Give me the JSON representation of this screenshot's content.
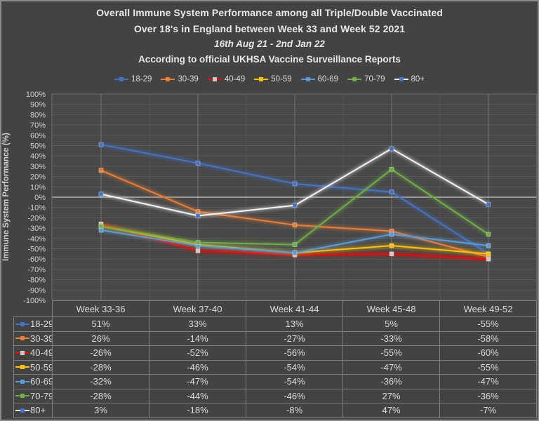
{
  "window": {
    "background": "#434343",
    "border_color": "#8c8c8c"
  },
  "title": {
    "line1": "Overall Immune System Performance among all Triple/Double Vaccinated",
    "line2": "Over 18's in England between Week 33 and Week 52 2021",
    "line3": "16th Aug 21 - 2nd Jan 22",
    "line4": "According to official UKHSA Vaccine Surveillance Reports"
  },
  "chart_data": {
    "type": "line",
    "title": "Overall Immune System Performance among all Triple/Double Vaccinated Over 18's in England between Week 33 and Week 52 2021",
    "ylabel": "Immune System Performance (%)",
    "ylim": [
      -100,
      100
    ],
    "y_tick_step": 10,
    "y_minor_step": 2,
    "grid": true,
    "legend_position": "top",
    "data_table_shown": true,
    "categories": [
      "Week 33-36",
      "Week 37-40",
      "Week 41-44",
      "Week 45-48",
      "Week 49-52"
    ],
    "series": [
      {
        "name": "18-29",
        "line_color": "#4472C4",
        "marker_color": "#4472C4",
        "values": [
          51,
          33,
          13,
          5,
          -55
        ],
        "values_display": [
          "51%",
          "33%",
          "13%",
          "5%",
          "-55%"
        ]
      },
      {
        "name": "30-39",
        "line_color": "#ED7D31",
        "marker_color": "#ED7D31",
        "values": [
          26,
          -14,
          -27,
          -33,
          -58
        ],
        "values_display": [
          "26%",
          "-14%",
          "-27%",
          "-33%",
          "-58%"
        ]
      },
      {
        "name": "40-49",
        "line_color": "#FF0000",
        "marker_color": "#C9C9C9",
        "values": [
          -26,
          -52,
          -56,
          -55,
          -60
        ],
        "values_display": [
          "-26%",
          "-52%",
          "-56%",
          "-55%",
          "-60%"
        ]
      },
      {
        "name": "50-59",
        "line_color": "#FFC000",
        "marker_color": "#FFC000",
        "values": [
          -28,
          -46,
          -54,
          -47,
          -55
        ],
        "values_display": [
          "-28%",
          "-46%",
          "-54%",
          "-47%",
          "-55%"
        ]
      },
      {
        "name": "60-69",
        "line_color": "#5B9BD5",
        "marker_color": "#5B9BD5",
        "values": [
          -32,
          -47,
          -54,
          -36,
          -47
        ],
        "values_display": [
          "-32%",
          "-47%",
          "-54%",
          "-36%",
          "-47%"
        ]
      },
      {
        "name": "70-79",
        "line_color": "#70AD47",
        "marker_color": "#70AD47",
        "values": [
          -28,
          -44,
          -46,
          27,
          -36
        ],
        "values_display": [
          "-28%",
          "-44%",
          "-46%",
          "27%",
          "-36%"
        ]
      },
      {
        "name": "80+",
        "line_color": "#F2F2F2",
        "marker_color": "#4472C4",
        "values": [
          3,
          -18,
          -8,
          47,
          -7
        ],
        "values_display": [
          "3%",
          "-18%",
          "-8%",
          "47%",
          "-7%"
        ]
      }
    ],
    "y_ticks": [
      "100%",
      "90%",
      "80%",
      "70%",
      "60%",
      "50%",
      "40%",
      "30%",
      "20%",
      "10%",
      "0%",
      "-10%",
      "-20%",
      "-30%",
      "-40%",
      "-50%",
      "-60%",
      "-70%",
      "-80%",
      "-90%",
      "-100%"
    ]
  },
  "colors": {
    "plot_bg": "#464646",
    "minor_grid": "#4e4e4e",
    "major_grid": "#5d5d5d",
    "zero_line": "#c9c9c9",
    "category_grid": "#757575",
    "boundary_grid": "#565656",
    "plot_border": "#6e6e6e",
    "axis_text": "#d2d2d2",
    "table_border": "#7f7f7f",
    "table_text": "#dcdcdc",
    "title_text": "#e8e8e8"
  }
}
